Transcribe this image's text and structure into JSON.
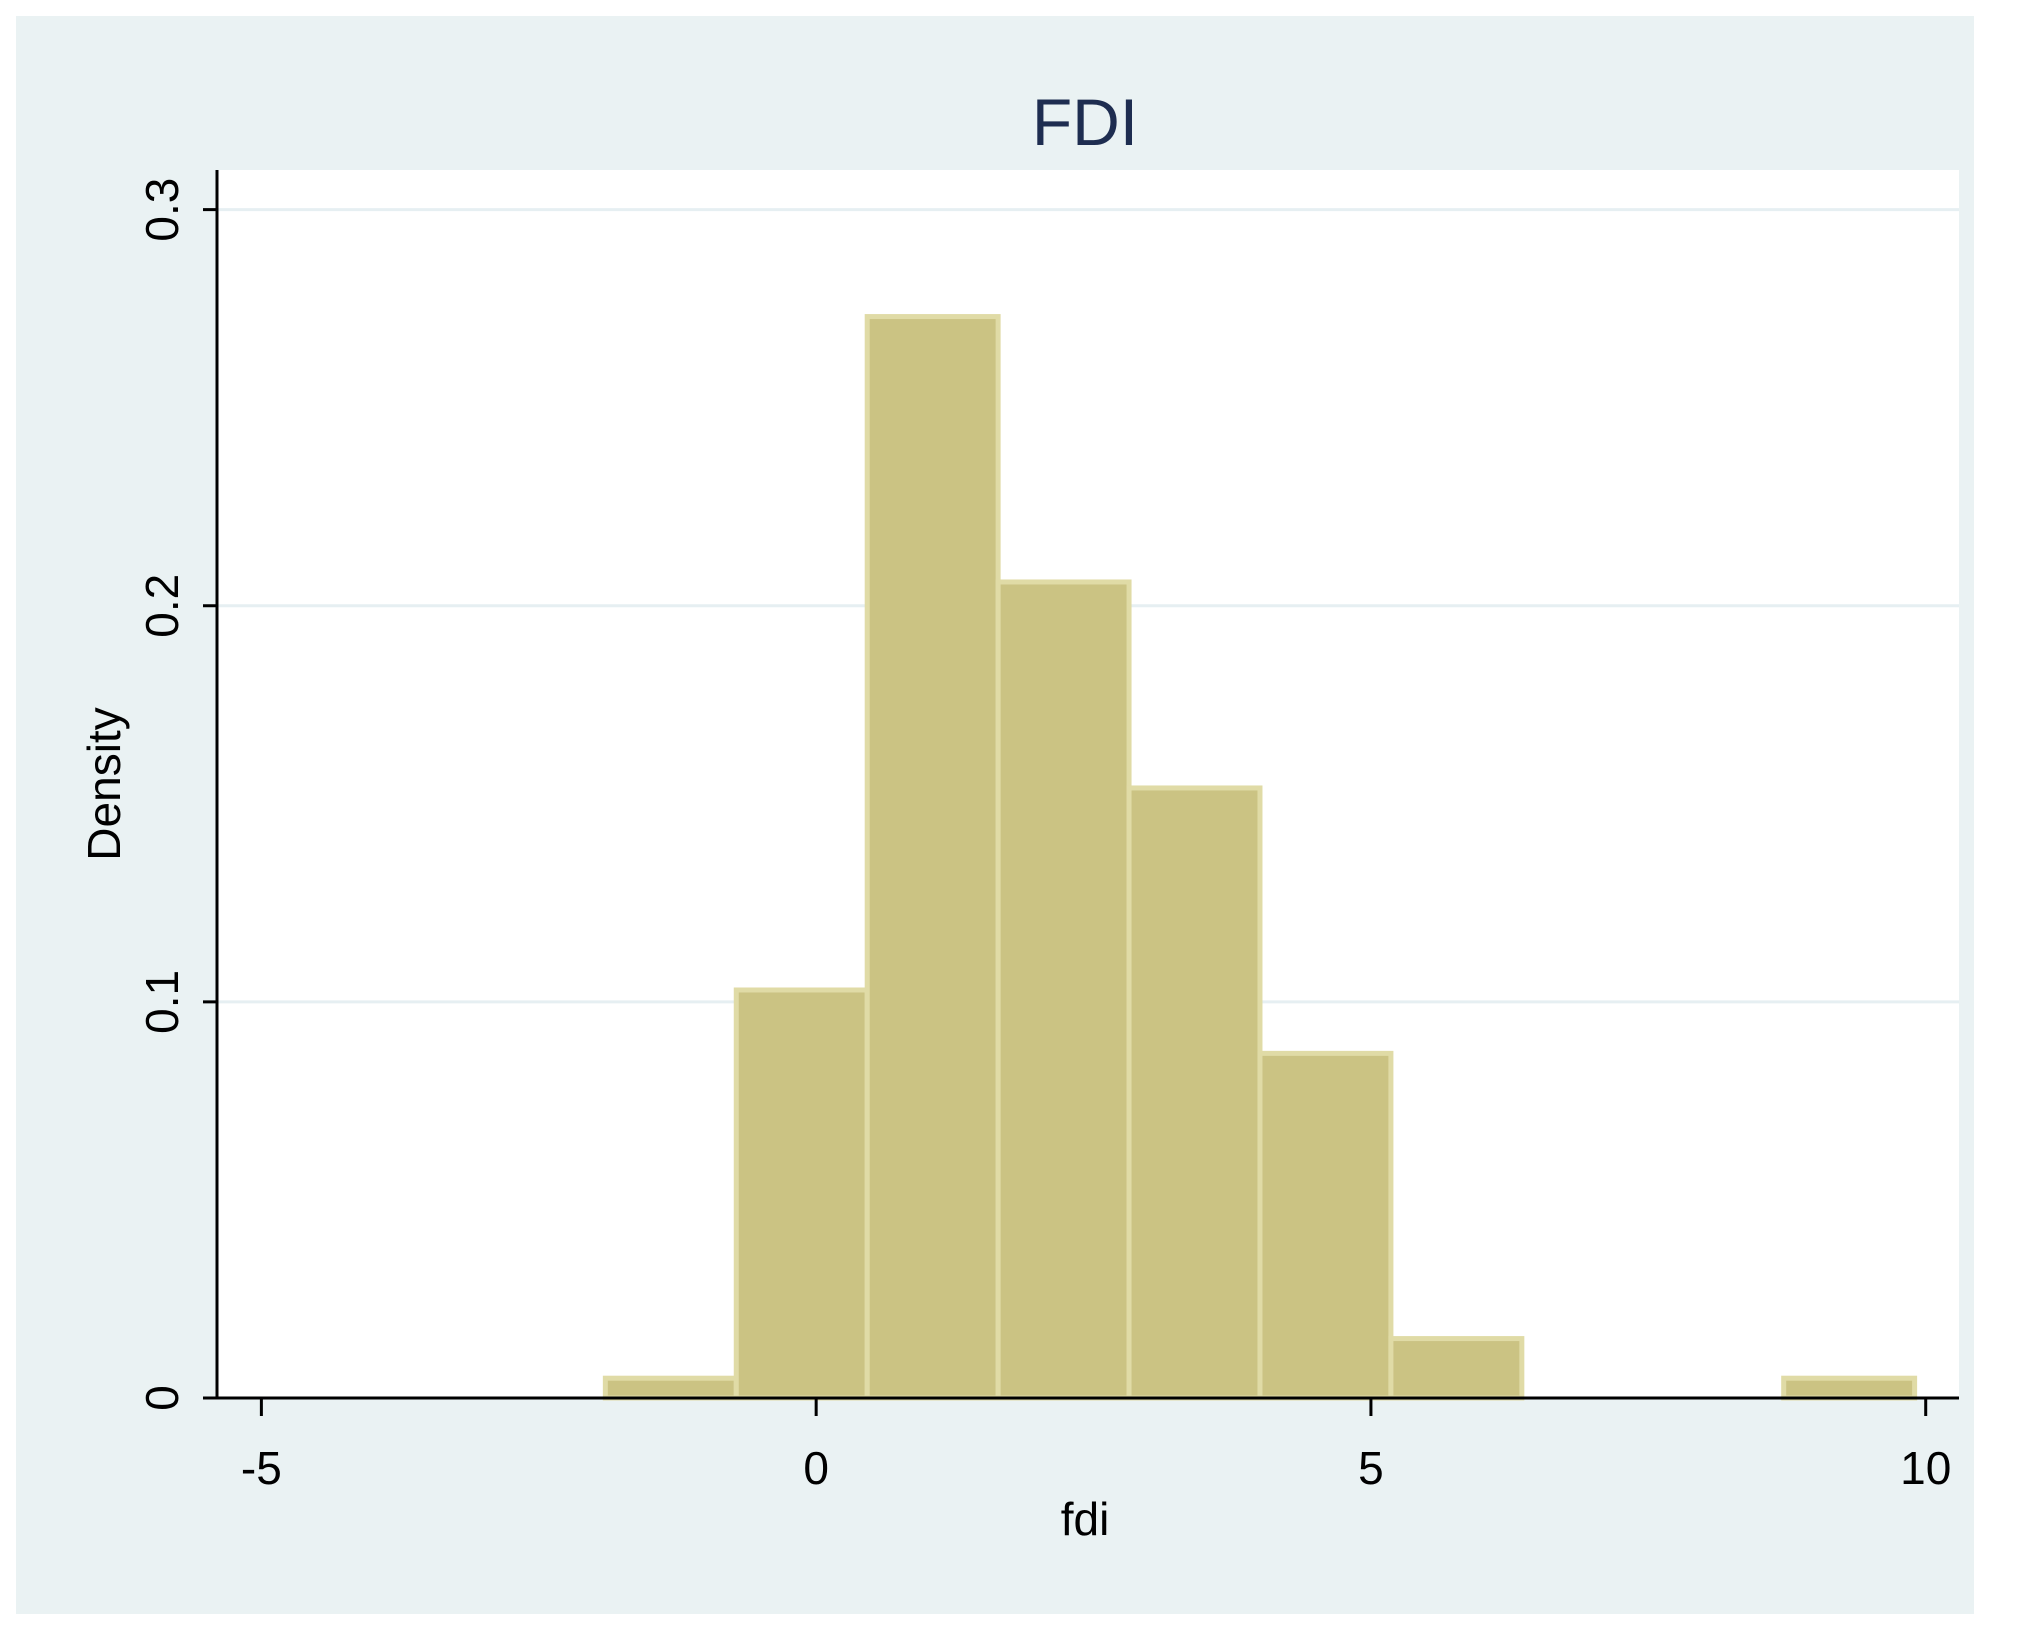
{
  "chart_data": {
    "type": "histogram",
    "title": "FDI",
    "xlabel": "fdi",
    "ylabel": "Density",
    "xlim": [
      -5.4,
      10.3
    ],
    "ylim": [
      0,
      0.31
    ],
    "xticks": [
      -5,
      0,
      5,
      10
    ],
    "xtick_labels": [
      "-5",
      "0",
      "5",
      "10"
    ],
    "yticks": [
      0,
      0.1,
      0.2,
      0.3
    ],
    "ytick_labels": [
      "0",
      "0.1",
      "0.2",
      "0.3"
    ],
    "grid": "horizontal",
    "legend": "none",
    "bins": [
      {
        "x0": -1.9,
        "x1": -0.72,
        "density": 0.005
      },
      {
        "x0": -0.72,
        "x1": 0.46,
        "density": 0.103
      },
      {
        "x0": 0.46,
        "x1": 1.64,
        "density": 0.273
      },
      {
        "x0": 1.64,
        "x1": 2.82,
        "density": 0.206
      },
      {
        "x0": 2.82,
        "x1": 4.0,
        "density": 0.154
      },
      {
        "x0": 4.0,
        "x1": 5.18,
        "density": 0.087
      },
      {
        "x0": 5.18,
        "x1": 6.36,
        "density": 0.015
      },
      {
        "x0": 6.36,
        "x1": 7.54,
        "density": 0
      },
      {
        "x0": 7.54,
        "x1": 8.72,
        "density": 0
      },
      {
        "x0": 8.72,
        "x1": 9.9,
        "density": 0.005
      }
    ]
  },
  "colors": {
    "outer_background": "#eaf2f3",
    "plot_background": "#ffffff",
    "bar_fill": "#cbc383",
    "bar_edge": "#e0dba6",
    "gridline": "#e6eff2",
    "axis": "#000000",
    "title_text": "#1e2d50",
    "label_text": "#000000"
  }
}
